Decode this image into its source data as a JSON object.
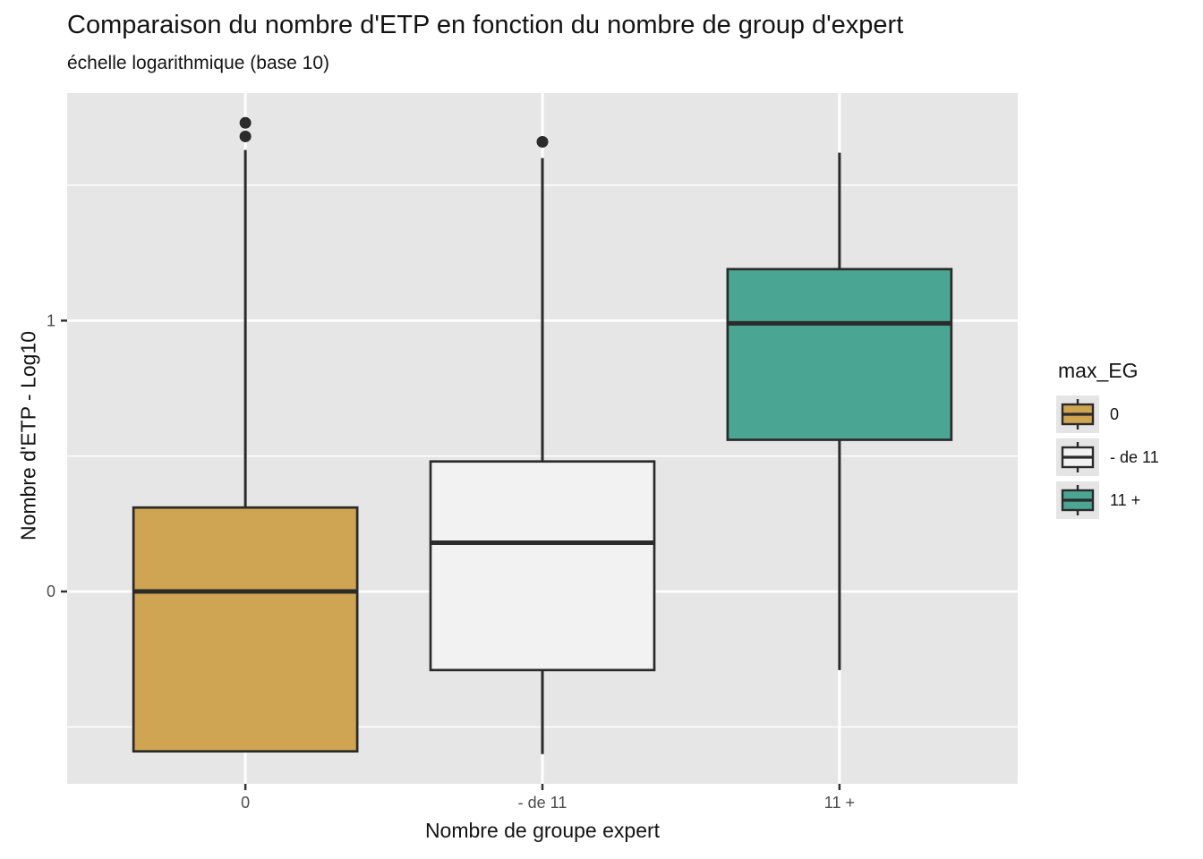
{
  "title": "Comparaison du nombre d'ETP en fonction du nombre de group d'expert",
  "subtitle": "échelle logarithmique (base 10)",
  "legend": {
    "title": "max_EG",
    "position": "right",
    "key_background": "#E5E5E5",
    "items": [
      {
        "label": "0",
        "fill": "#CFA452"
      },
      {
        "label": "- de 11",
        "fill": "#F2F2F2"
      },
      {
        "label": "11 +",
        "fill": "#4AA692"
      }
    ]
  },
  "colors": {
    "panel_background": "#E6E6E6",
    "gridline": "#FFFFFF",
    "box_outline": "#2B2B2B",
    "outlier": "#2B2B2B",
    "tick_mark": "#333333",
    "tick_label": "#4D4D4D",
    "text": "#141414"
  },
  "chart_data": {
    "type": "boxplot",
    "title": "Comparaison du nombre d'ETP en fonction du nombre de group d'expert",
    "subtitle": "échelle logarithmique (base 10)",
    "xlabel": "Nombre de groupe expert",
    "ylabel": "Nombre d'ETP - Log10",
    "categories": [
      "0",
      "- de 11",
      "11 +"
    ],
    "y_ticks": [
      {
        "value": 0,
        "label": "0"
      },
      {
        "value": 1,
        "label": "1"
      }
    ],
    "y_minor": [
      -0.5,
      0.5,
      1.5
    ],
    "ylim": [
      -0.71,
      1.84
    ],
    "grid": "on",
    "legend_position": "right",
    "series": [
      {
        "category": "0",
        "fill": "#CFA452",
        "whisker_low": -0.59,
        "q1": -0.59,
        "median": 0.0,
        "q3": 0.31,
        "whisker_high": 1.63,
        "outliers": [
          1.68,
          1.73
        ]
      },
      {
        "category": "- de 11",
        "fill": "#F2F2F2",
        "whisker_low": -0.6,
        "q1": -0.29,
        "median": 0.18,
        "q3": 0.48,
        "whisker_high": 1.6,
        "outliers": [
          1.66
        ]
      },
      {
        "category": "11 +",
        "fill": "#4AA692",
        "whisker_low": -0.29,
        "q1": 0.56,
        "median": 0.99,
        "q3": 1.19,
        "whisker_high": 1.62,
        "outliers": []
      }
    ]
  }
}
